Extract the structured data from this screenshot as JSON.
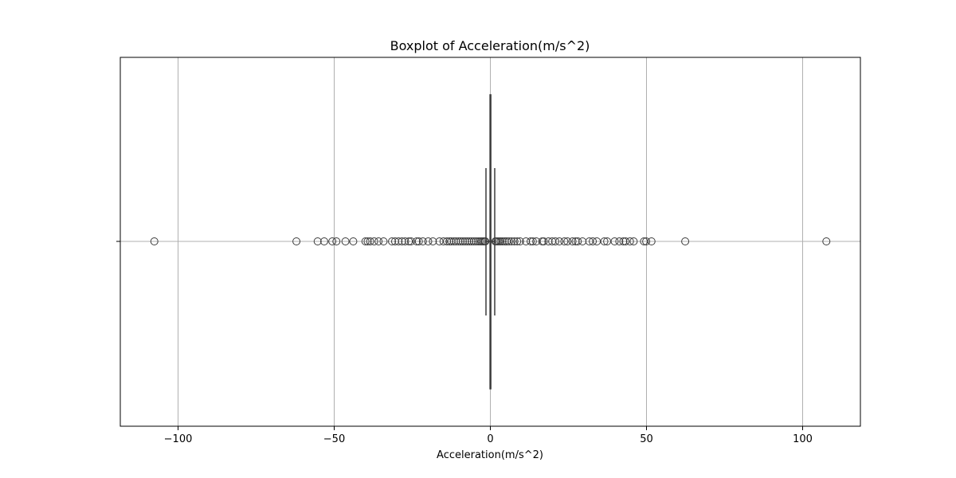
{
  "chart_data": {
    "type": "boxplot",
    "orientation": "horizontal",
    "title": "Boxplot of Acceleration(m/s^2)",
    "xlabel": "Acceleration(m/s^2)",
    "ylabel": "",
    "xlim": [
      -118.5,
      118.5
    ],
    "x_ticks": [
      -100,
      -50,
      0,
      50,
      100
    ],
    "x_tick_labels": [
      "−100",
      "−50",
      "0",
      "50",
      "100"
    ],
    "grid": true,
    "box": {
      "q1": -0.1,
      "median": 0.0,
      "q3": 0.1,
      "whisker_low": -1.4,
      "whisker_high": 1.4
    },
    "outliers": [
      -107.6,
      -62.1,
      -55.3,
      -53.2,
      -50.6,
      -49.3,
      -46.4,
      -43.9,
      -40.0,
      -39.3,
      -38.5,
      -37.2,
      -35.8,
      -34.2,
      -31.5,
      -30.5,
      -29.4,
      -28.3,
      -27.3,
      -26.1,
      -25.4,
      -23.6,
      -22.9,
      -21.6,
      -19.9,
      -18.4,
      -16.3,
      -15.0,
      -13.9,
      -13.1,
      -12.5,
      -11.7,
      -11.0,
      -10.2,
      -9.5,
      -8.8,
      -8.1,
      -7.4,
      -6.7,
      -6.0,
      -5.3,
      -4.6,
      -3.9,
      -3.3,
      -2.8,
      -2.3,
      -1.9,
      -1.6,
      1.6,
      1.9,
      2.3,
      2.8,
      3.3,
      3.9,
      4.6,
      5.3,
      6.0,
      6.8,
      7.7,
      8.6,
      9.5,
      11.4,
      12.9,
      13.6,
      14.7,
      16.6,
      17.1,
      18.6,
      19.8,
      20.8,
      22.1,
      23.7,
      24.7,
      26.3,
      27.3,
      28.0,
      29.5,
      31.7,
      32.8,
      34.1,
      36.5,
      37.4,
      39.8,
      41.3,
      42.6,
      43.3,
      44.7,
      45.9,
      49.2,
      49.9,
      51.6,
      62.4,
      107.6
    ]
  }
}
